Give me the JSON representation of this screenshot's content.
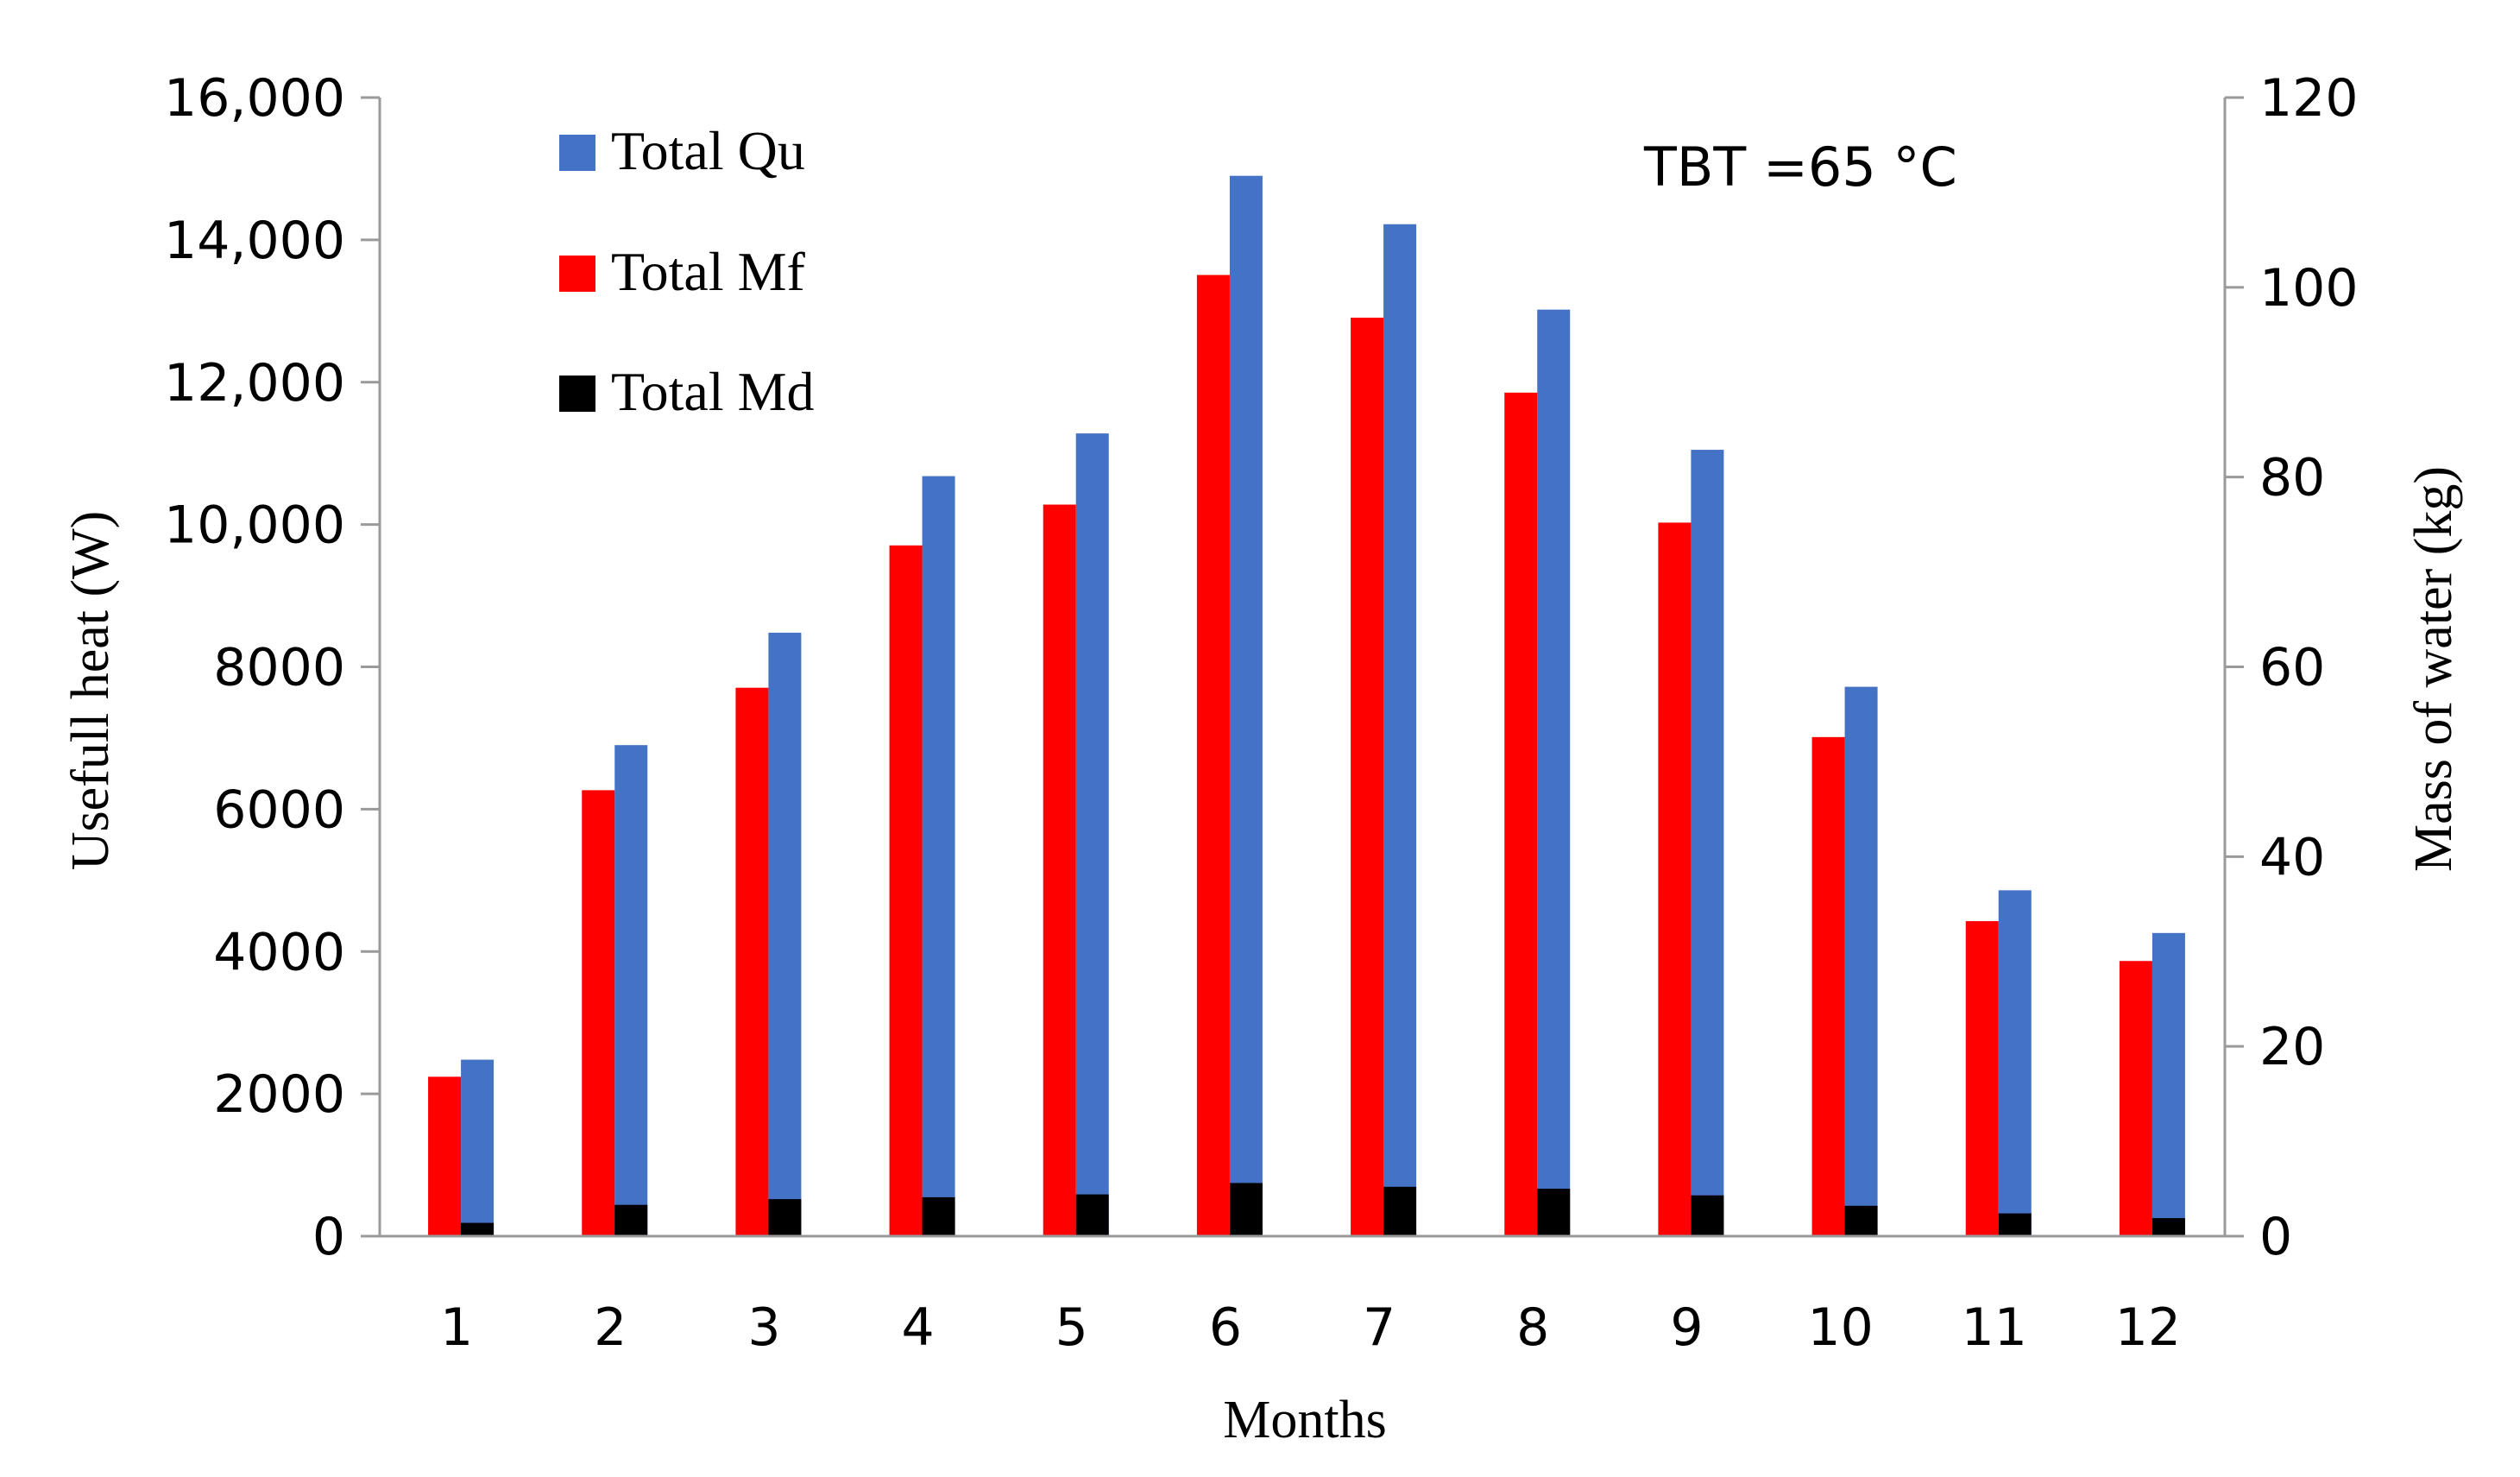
{
  "chart_data": {
    "type": "bar",
    "title": "",
    "annotation": "TBT =65 °C",
    "xlabel": "Months",
    "ylabel_left": "Usefull heat (W)",
    "ylabel_right": "Mass of water (kg)",
    "categories": [
      "1",
      "2",
      "3",
      "4",
      "5",
      "6",
      "7",
      "8",
      "9",
      "10",
      "11",
      "12"
    ],
    "ylim_left": [
      0,
      16000
    ],
    "ylim_right": [
      0,
      120
    ],
    "yticks_left": [
      "0",
      "2000",
      "4000",
      "6000",
      "8000",
      "10,000",
      "12,000",
      "14,000",
      "16,000"
    ],
    "yticks_right": [
      "0",
      "20",
      "40",
      "60",
      "80",
      "100",
      "120"
    ],
    "legend_position": "top-left",
    "series": [
      {
        "name": "Total Qu",
        "axis": "left",
        "color": "#4472C4",
        "values": [
          2480,
          6900,
          8480,
          10680,
          11280,
          14900,
          14220,
          13020,
          11050,
          7720,
          4860,
          4260
        ]
      },
      {
        "name": "Total Mf",
        "axis": "right",
        "color": "#FF0000",
        "values": [
          16.8,
          47.0,
          57.8,
          72.8,
          77.1,
          101.3,
          96.8,
          88.9,
          75.2,
          52.6,
          33.2,
          29.0
        ]
      },
      {
        "name": "Total Md",
        "axis": "right",
        "color": "#000000",
        "values": [
          1.4,
          3.3,
          3.9,
          4.1,
          4.4,
          5.6,
          5.2,
          5.0,
          4.3,
          3.2,
          2.4,
          1.9
        ]
      }
    ]
  }
}
